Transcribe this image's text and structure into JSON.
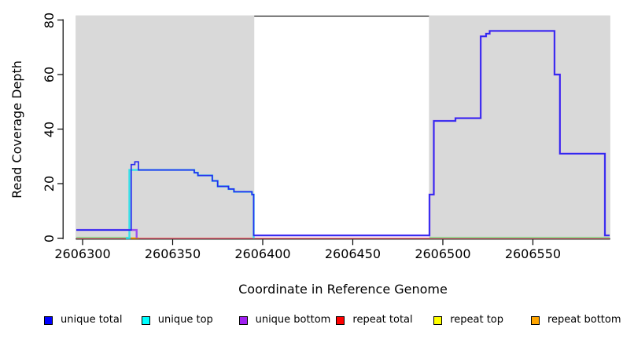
{
  "chart_data": {
    "type": "line",
    "subtype": "step-coverage",
    "title": "",
    "xlabel": "Coordinate in Reference Genome",
    "ylabel": "Read Coverage Depth",
    "xlim": [
      2606296.5,
      2606592.6
    ],
    "ylim": [
      0,
      81.7
    ],
    "x_ticks": [
      2606300,
      2606350,
      2606400,
      2606450,
      2606500,
      2606550
    ],
    "y_ticks": [
      0,
      20,
      40,
      60,
      80
    ],
    "grid": false,
    "legend_position": "bottom",
    "background_shading": {
      "color": "#D9D9D9",
      "regions": [
        [
          2606296.5,
          2606395
        ],
        [
          2606492.6,
          2606592.6
        ]
      ]
    },
    "series": [
      {
        "name": "repeat top",
        "color": "#FFFF00",
        "paths": [
          [
            [
              2606296.5,
              0
            ],
            [
              2606592.6,
              0
            ]
          ]
        ]
      },
      {
        "name": "repeat total",
        "color": "#FF0000",
        "paths": [
          [
            [
              2606296.5,
              0
            ],
            [
              2606592.6,
              0
            ]
          ]
        ]
      },
      {
        "name": "repeat bottom",
        "color": "#FFA500",
        "paths": [
          [
            [
              2606327,
              0
            ],
            [
              2606331,
              0
            ]
          ]
        ]
      },
      {
        "name": "unique top",
        "color": "#00FFFF",
        "paths": [
          [
            [
              2606324,
              0
            ],
            [
              2606326,
              25
            ],
            [
              2606362,
              24
            ],
            [
              2606364,
              23
            ],
            [
              2606372,
              21
            ],
            [
              2606375,
              19
            ],
            [
              2606381,
              18
            ],
            [
              2606384,
              17
            ],
            [
              2606394,
              16
            ],
            [
              2606395,
              0
            ]
          ]
        ]
      },
      {
        "name": "unique bottom",
        "color": "#A020F0",
        "paths": [
          [
            [
              2606296.5,
              3
            ],
            [
              2606330,
              0
            ]
          ],
          [
            [
              2606395,
              1
            ],
            [
              2606492.6,
              16
            ],
            [
              2606495,
              43
            ],
            [
              2606507,
              44
            ],
            [
              2606521,
              74
            ],
            [
              2606524,
              75
            ],
            [
              2606526,
              76
            ],
            [
              2606562,
              60
            ],
            [
              2606565,
              31
            ],
            [
              2606590,
              1
            ],
            [
              2606592.6,
              1
            ]
          ]
        ]
      },
      {
        "name": "unique total",
        "color": "#0000FF",
        "paths": [
          [
            [
              2606296.5,
              3
            ],
            [
              2606327,
              27
            ],
            [
              2606329,
              28
            ],
            [
              2606331,
              25
            ],
            [
              2606362,
              24
            ],
            [
              2606364,
              23
            ],
            [
              2606372,
              21
            ],
            [
              2606375,
              19
            ],
            [
              2606381,
              18
            ],
            [
              2606384,
              17
            ],
            [
              2606394,
              16
            ],
            [
              2606395,
              1
            ],
            [
              2606492.6,
              16
            ],
            [
              2606495,
              43
            ],
            [
              2606507,
              44
            ],
            [
              2606521,
              74
            ],
            [
              2606524,
              75
            ],
            [
              2606526,
              76
            ],
            [
              2606562,
              60
            ],
            [
              2606565,
              31
            ],
            [
              2606590,
              1
            ],
            [
              2606592.6,
              1
            ]
          ]
        ]
      }
    ],
    "baseline_overlap": {
      "color": "#8FDC8F",
      "depth": 0,
      "segments": [
        [
          2606296.5,
          2606327
        ],
        [
          2606492.6,
          2606592.6
        ]
      ]
    }
  },
  "legend": {
    "items": [
      {
        "label": "unique total",
        "color": "#0000FF"
      },
      {
        "label": "unique top",
        "color": "#00FFFF"
      },
      {
        "label": "unique bottom",
        "color": "#A020F0"
      },
      {
        "label": "repeat total",
        "color": "#FF0000"
      },
      {
        "label": "repeat top",
        "color": "#FFFF00"
      },
      {
        "label": "repeat bottom",
        "color": "#FFA500"
      }
    ]
  }
}
